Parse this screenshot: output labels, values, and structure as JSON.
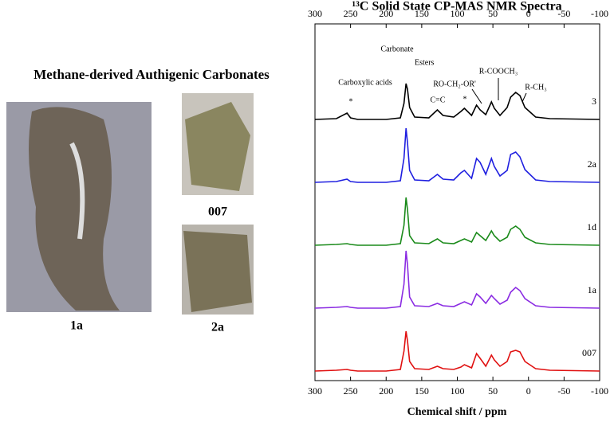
{
  "chart_data": {
    "type": "line",
    "title": "¹³C Solid State CP-MAS NMR Spectra",
    "x_label": "Chemical shift / ppm",
    "panel_title": "Methane-derived Authigenic Carbonates",
    "photo_labels": [
      "1a",
      "007",
      "2a"
    ],
    "annotations": [
      "Carbonate",
      "Esters",
      "Carboxylic acids",
      "*",
      "C=C",
      "RO-CH₂-OR'",
      "*",
      "R-COOCH₃",
      "R-CH₃"
    ],
    "xlim": [
      300,
      -100
    ],
    "xticks": [
      300,
      250,
      200,
      150,
      100,
      50,
      0,
      -50,
      -100
    ],
    "ylim": [
      0,
      80
    ],
    "x": [
      300,
      270,
      255,
      250,
      240,
      200,
      180,
      175,
      172,
      170,
      167,
      160,
      140,
      128,
      120,
      105,
      95,
      90,
      80,
      73,
      68,
      60,
      52,
      48,
      40,
      30,
      25,
      18,
      12,
      5,
      -10,
      -30,
      -100
    ],
    "series": [
      {
        "name": "3",
        "color": "#000000",
        "values": [
          0,
          1,
          8,
          2,
          0,
          0,
          2,
          20,
          45,
          38,
          15,
          3,
          2,
          12,
          5,
          3,
          10,
          14,
          5,
          18,
          12,
          6,
          22,
          14,
          5,
          15,
          28,
          34,
          30,
          15,
          3,
          1,
          0
        ]
      },
      {
        "name": "2a",
        "color": "#1f1fe0",
        "values": [
          0,
          1,
          4,
          1,
          0,
          0,
          2,
          30,
          68,
          50,
          15,
          3,
          2,
          10,
          4,
          3,
          12,
          15,
          5,
          30,
          25,
          10,
          30,
          20,
          8,
          15,
          35,
          38,
          32,
          16,
          3,
          1,
          0
        ]
      },
      {
        "name": "1d",
        "color": "#1a8a1a",
        "values": [
          0,
          1,
          2,
          1,
          0,
          0,
          2,
          25,
          60,
          45,
          12,
          3,
          2,
          8,
          3,
          2,
          6,
          8,
          4,
          16,
          12,
          6,
          18,
          12,
          5,
          10,
          20,
          24,
          20,
          10,
          3,
          1,
          0
        ]
      },
      {
        "name": "1a",
        "color": "#8a2be2",
        "values": [
          0,
          1,
          2,
          1,
          0,
          0,
          2,
          30,
          72,
          55,
          14,
          3,
          2,
          6,
          3,
          2,
          6,
          8,
          4,
          18,
          14,
          6,
          16,
          12,
          5,
          10,
          20,
          26,
          22,
          12,
          3,
          1,
          0
        ]
      },
      {
        "name": "007",
        "color": "#e01010",
        "values": [
          0,
          1,
          2,
          1,
          0,
          0,
          2,
          25,
          50,
          38,
          12,
          3,
          2,
          6,
          3,
          2,
          5,
          8,
          4,
          22,
          16,
          6,
          20,
          14,
          6,
          12,
          24,
          26,
          24,
          12,
          3,
          1,
          0
        ]
      }
    ]
  }
}
